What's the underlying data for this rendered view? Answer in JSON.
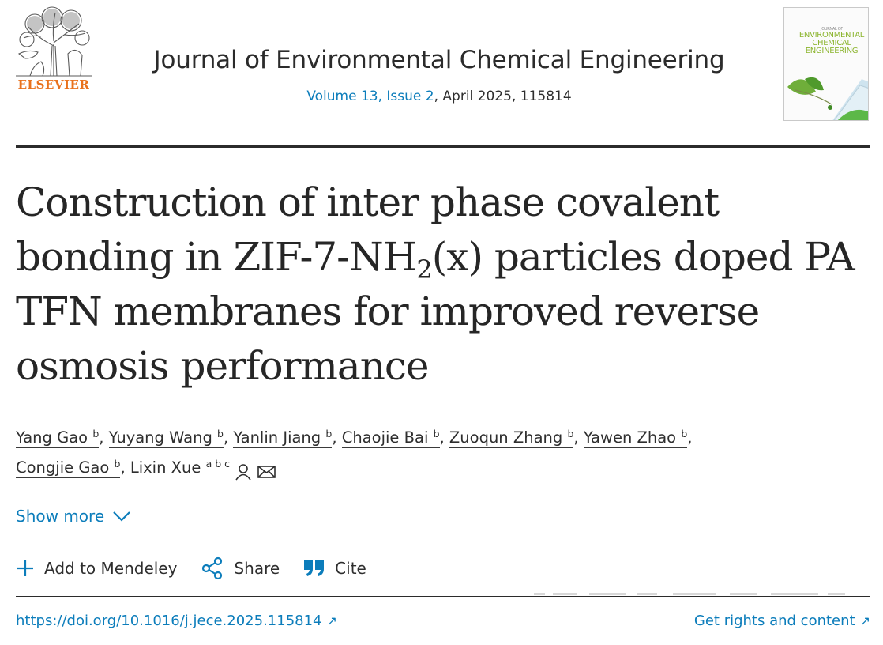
{
  "header": {
    "publisher": "ELSEVIER",
    "journal_title": "Journal of Environmental Chemical Engineering",
    "issue_link": "Volume 13, Issue 2",
    "issue_rest": ", April 2025, 115814",
    "cover": {
      "pre": "JOURNAL OF",
      "line1": "ENVIRONMENTAL",
      "line2": "CHEMICAL",
      "line3": "ENGINEERING"
    }
  },
  "article": {
    "title_part1": "Construction of inter phase covalent bonding in ZIF-7-NH",
    "title_sub": "2",
    "title_part2": "(x) particles doped PA TFN membranes for improved reverse osmosis performance"
  },
  "authors": [
    {
      "name": "Yang Gao",
      "aff": "b",
      "sep": ","
    },
    {
      "name": "Yuyang Wang",
      "aff": "b",
      "sep": ","
    },
    {
      "name": "Yanlin Jiang",
      "aff": "b",
      "sep": ","
    },
    {
      "name": "Chaojie Bai",
      "aff": "b",
      "sep": ","
    },
    {
      "name": "Zuoqun Zhang",
      "aff": "b",
      "sep": ","
    },
    {
      "name": "Yawen Zhao",
      "aff": "b",
      "sep": ","
    },
    {
      "name": "Congjie Gao",
      "aff": "b",
      "sep": ","
    },
    {
      "name": "Lixin Xue",
      "aff": "a b c",
      "sep": ""
    }
  ],
  "show_more": "Show more",
  "actions": {
    "mendeley": "Add to Mendeley",
    "share": "Share",
    "cite": "Cite"
  },
  "links": {
    "doi": "https://doi.org/10.1016/j.jece.2025.115814",
    "rights": "Get rights and content",
    "arrow": "↗"
  },
  "colors": {
    "link_blue": "#0c7dbb",
    "elsevier_orange": "#e9711c",
    "text_dark": "#2e2e2e"
  },
  "icons": [
    "elsevier-tree-logo",
    "person-icon",
    "envelope-icon",
    "chevron-down-icon",
    "plus-icon",
    "share-icon",
    "quote-icon",
    "external-arrow-icon"
  ]
}
